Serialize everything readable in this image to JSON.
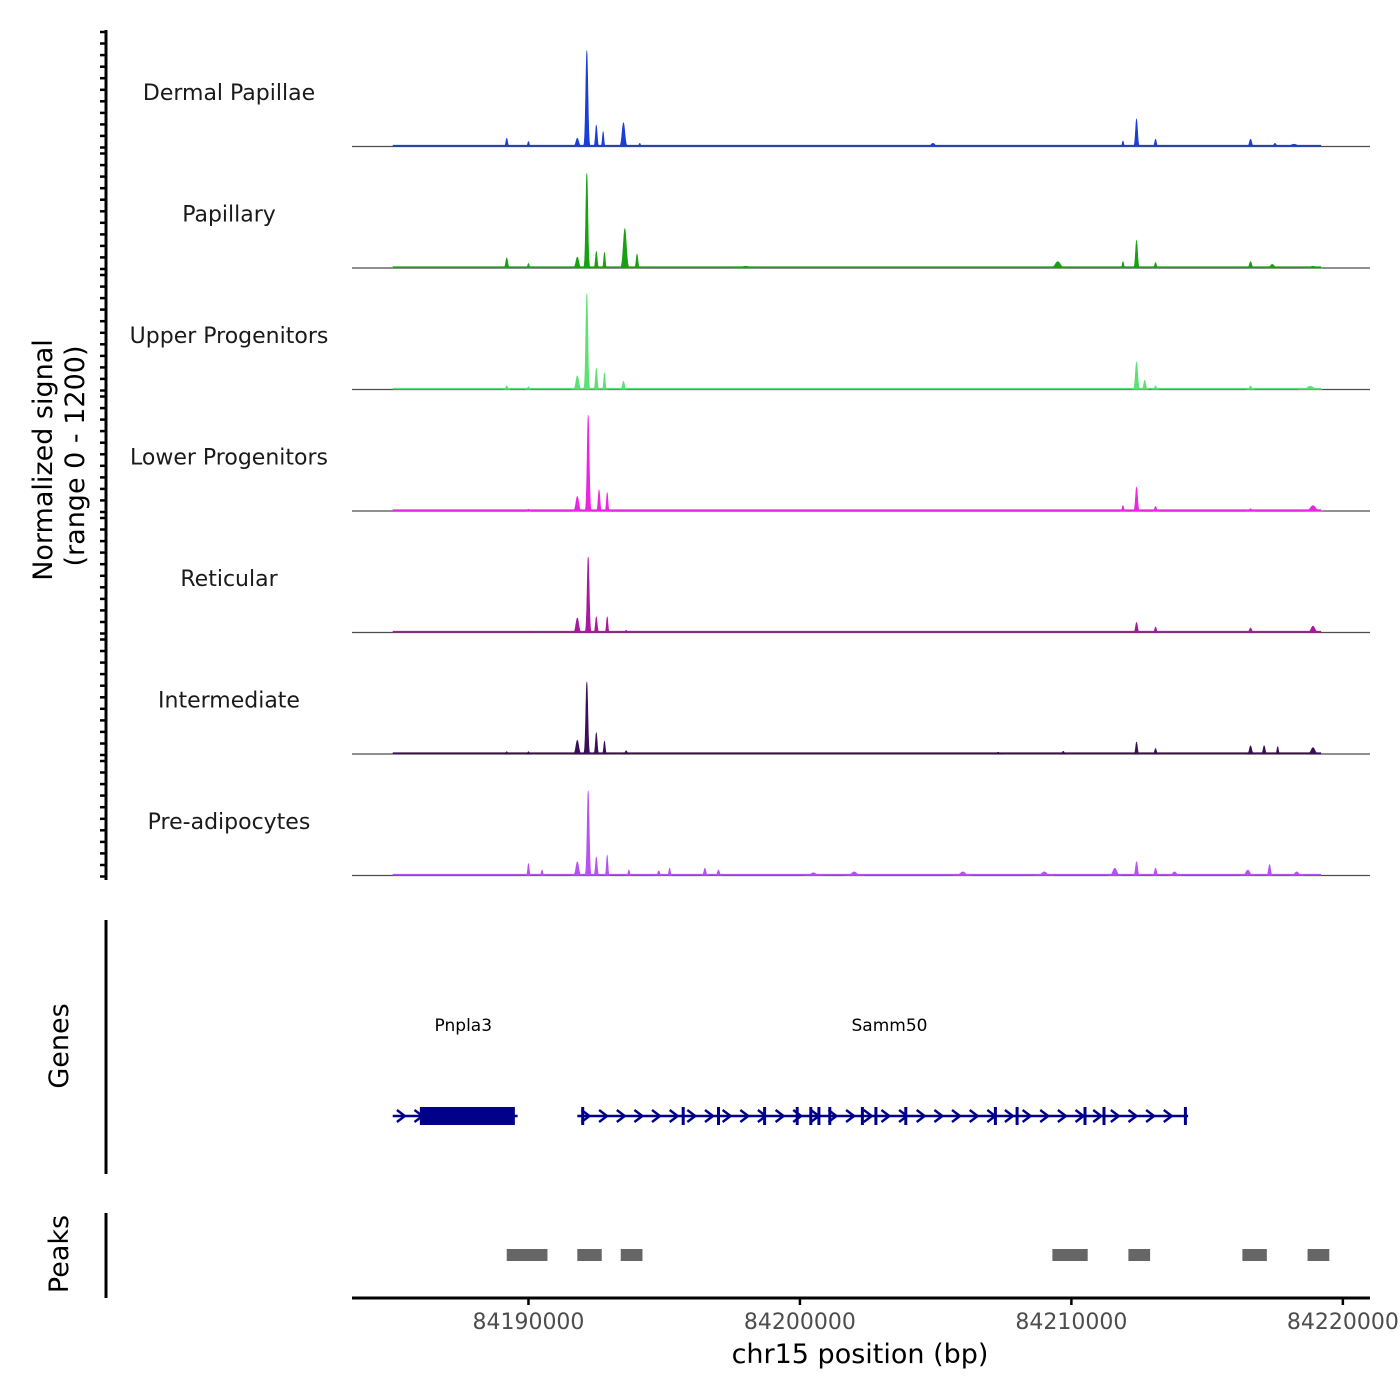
{
  "chart_data": {
    "type": "area",
    "title": "",
    "ylabel_line1": "Normalized signal",
    "ylabel_line2": "(range 0 - 1200)",
    "ylim": [
      0,
      1200
    ],
    "xlabel": "chr15 position (bp)",
    "xlim": [
      84183500,
      84221000
    ],
    "xticks": [
      84190000,
      84200000,
      84210000,
      84220000
    ],
    "xtick_labels": [
      "84190000",
      "84200000",
      "84210000",
      "84220000"
    ],
    "tracks_x_range": [
      84185000,
      84219200
    ],
    "tracks": [
      {
        "name": "Dermal Papillae",
        "color": "#1a3fd6",
        "peaks": [
          [
            84189200,
            90,
            70
          ],
          [
            84190000,
            55,
            60
          ],
          [
            84191800,
            90,
            110
          ],
          [
            84192150,
            1050,
            85
          ],
          [
            84192500,
            230,
            70
          ],
          [
            84192750,
            160,
            60
          ],
          [
            84193500,
            260,
            110
          ],
          [
            84194100,
            35,
            60
          ],
          [
            84204900,
            35,
            150
          ],
          [
            84211900,
            60,
            60
          ],
          [
            84212400,
            300,
            80
          ],
          [
            84213100,
            80,
            70
          ],
          [
            84216600,
            80,
            90
          ],
          [
            84217500,
            35,
            90
          ],
          [
            84218200,
            25,
            250
          ]
        ]
      },
      {
        "name": "Papillary",
        "color": "#17a112",
        "peaks": [
          [
            84189200,
            110,
            80
          ],
          [
            84190000,
            50,
            60
          ],
          [
            84191800,
            120,
            110
          ],
          [
            84192150,
            1040,
            80
          ],
          [
            84192500,
            180,
            70
          ],
          [
            84192800,
            170,
            60
          ],
          [
            84193550,
            430,
            120
          ],
          [
            84194000,
            150,
            70
          ],
          [
            84198000,
            20,
            250
          ],
          [
            84209500,
            70,
            200
          ],
          [
            84211900,
            70,
            60
          ],
          [
            84212400,
            300,
            80
          ],
          [
            84213100,
            60,
            70
          ],
          [
            84216600,
            70,
            90
          ],
          [
            84217400,
            40,
            150
          ],
          [
            84218900,
            20,
            200
          ]
        ]
      },
      {
        "name": "Upper Progenitors",
        "color": "#5de075",
        "peaks": [
          [
            84189200,
            40,
            70
          ],
          [
            84190000,
            30,
            60
          ],
          [
            84191800,
            150,
            110
          ],
          [
            84192150,
            1050,
            80
          ],
          [
            84192500,
            230,
            70
          ],
          [
            84192800,
            180,
            60
          ],
          [
            84193500,
            90,
            80
          ],
          [
            84212400,
            300,
            90
          ],
          [
            84212700,
            100,
            80
          ],
          [
            84213100,
            40,
            70
          ],
          [
            84216600,
            40,
            80
          ],
          [
            84218800,
            35,
            250
          ]
        ]
      },
      {
        "name": "Lower Progenitors",
        "color": "#ee24e3",
        "peaks": [
          [
            84190000,
            20,
            60
          ],
          [
            84191800,
            160,
            110
          ],
          [
            84192200,
            1050,
            80
          ],
          [
            84192600,
            230,
            70
          ],
          [
            84192900,
            200,
            60
          ],
          [
            84211900,
            60,
            60
          ],
          [
            84212400,
            260,
            80
          ],
          [
            84213100,
            50,
            70
          ],
          [
            84216600,
            25,
            90
          ],
          [
            84218900,
            60,
            200
          ]
        ]
      },
      {
        "name": "Reticular",
        "color": "#a8199d",
        "peaks": [
          [
            84190000,
            15,
            60
          ],
          [
            84191800,
            160,
            110
          ],
          [
            84192200,
            830,
            80
          ],
          [
            84192500,
            170,
            70
          ],
          [
            84192900,
            170,
            60
          ],
          [
            84193600,
            25,
            60
          ],
          [
            84212400,
            110,
            80
          ],
          [
            84213100,
            60,
            70
          ],
          [
            84216600,
            50,
            90
          ],
          [
            84218900,
            70,
            150
          ]
        ]
      },
      {
        "name": "Intermediate",
        "color": "#3a0f58",
        "peaks": [
          [
            84189200,
            25,
            70
          ],
          [
            84190000,
            25,
            60
          ],
          [
            84191800,
            150,
            110
          ],
          [
            84192150,
            790,
            80
          ],
          [
            84192500,
            230,
            70
          ],
          [
            84192800,
            140,
            60
          ],
          [
            84193600,
            35,
            80
          ],
          [
            84207300,
            20,
            100
          ],
          [
            84209700,
            30,
            80
          ],
          [
            84212400,
            130,
            70
          ],
          [
            84213100,
            60,
            70
          ],
          [
            84216600,
            90,
            90
          ],
          [
            84217100,
            90,
            80
          ],
          [
            84217600,
            80,
            60
          ],
          [
            84218900,
            70,
            150
          ]
        ]
      },
      {
        "name": "Pre-adipocytes",
        "color": "#b552f2",
        "peaks": [
          [
            84190000,
            130,
            60
          ],
          [
            84190500,
            60,
            60
          ],
          [
            84191800,
            150,
            110
          ],
          [
            84192200,
            930,
            80
          ],
          [
            84192500,
            200,
            70
          ],
          [
            84192900,
            220,
            60
          ],
          [
            84193700,
            60,
            60
          ],
          [
            84194800,
            50,
            80
          ],
          [
            84195200,
            80,
            60
          ],
          [
            84196500,
            80,
            80
          ],
          [
            84197000,
            60,
            80
          ],
          [
            84200500,
            30,
            200
          ],
          [
            84202000,
            40,
            200
          ],
          [
            84206000,
            40,
            200
          ],
          [
            84209000,
            40,
            200
          ],
          [
            84211600,
            80,
            150
          ],
          [
            84212400,
            150,
            80
          ],
          [
            84213100,
            80,
            80
          ],
          [
            84213800,
            40,
            150
          ],
          [
            84216500,
            60,
            150
          ],
          [
            84217300,
            120,
            80
          ],
          [
            84218300,
            40,
            150
          ]
        ]
      }
    ],
    "genes_label": "Genes",
    "genes": [
      {
        "name": "Pnpla3",
        "start": 84185000,
        "end": 84189600,
        "label_x": 84187600,
        "thick_start": 84186000,
        "thick_end": 84189500,
        "exons": []
      },
      {
        "name": "Samm50",
        "start": 84191800,
        "end": 84214300,
        "label_x": 84203300,
        "thick_start": 84191800,
        "thick_end": 84191800,
        "exons": [
          84192000,
          84195700,
          84197000,
          84198700,
          84199900,
          84200400,
          84200700,
          84201100,
          84202300,
          84202800,
          84203900,
          84207200,
          84208000,
          84210500,
          84211200,
          84214200
        ]
      }
    ],
    "peaks_label": "Peaks",
    "peaks": [
      [
        84189200,
        84190700
      ],
      [
        84191800,
        84192700
      ],
      [
        84193400,
        84194200
      ],
      [
        84209300,
        84210600
      ],
      [
        84212100,
        84212900
      ],
      [
        84216300,
        84217200
      ],
      [
        84218700,
        84219500
      ]
    ]
  }
}
